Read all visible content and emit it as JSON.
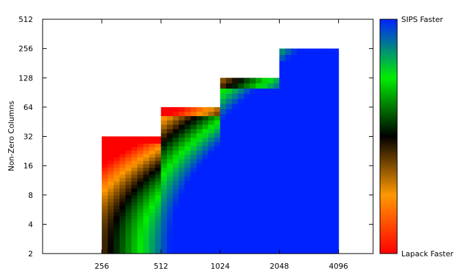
{
  "chart_data": {
    "type": "heatmap",
    "title": "",
    "xlabel": "",
    "ylabel": "Non-Zero Columns",
    "x_scale": "log2",
    "y_scale": "log2",
    "x_ticks": [
      "256",
      "512",
      "1024",
      "2048",
      "4096"
    ],
    "y_ticks": [
      "2",
      "4",
      "8",
      "16",
      "32",
      "64",
      "128",
      "256",
      "512"
    ],
    "xlim": [
      128,
      6144
    ],
    "ylim": [
      2,
      512
    ],
    "grid": false,
    "regions": [
      {
        "x_range": [
          256,
          512
        ],
        "y_max": 32
      },
      {
        "x_range": [
          512,
          1024
        ],
        "y_max": 64
      },
      {
        "x_range": [
          1024,
          2048
        ],
        "y_max": 128
      },
      {
        "x_range": [
          2048,
          4096
        ],
        "y_max": 256
      }
    ],
    "colorbar": {
      "top_label": "SIPS Faster",
      "bottom_label": "Lapack Faster",
      "colors_bottom_to_top": [
        "#ff0000",
        "#ff9900",
        "#000000",
        "#00ee00",
        "#0022ff"
      ]
    }
  }
}
